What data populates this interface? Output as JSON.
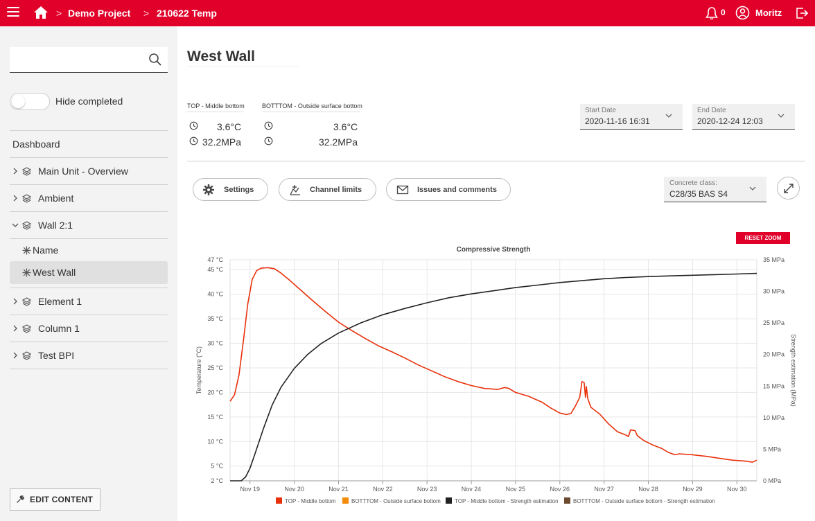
{
  "header": {
    "breadcrumbs": [
      "Demo Project",
      "210622 Temp"
    ],
    "separator": ">",
    "notification_count": "0",
    "user_name": "Moritz",
    "accent": "#e0002a"
  },
  "sidebar": {
    "search_placeholder": "",
    "toggle_label": "Hide completed",
    "items": [
      {
        "label": "Dashboard"
      },
      {
        "label": "Main Unit - Overview"
      },
      {
        "label": "Ambient"
      },
      {
        "label": "Wall 2:1"
      },
      {
        "label": "Name"
      },
      {
        "label": "West Wall"
      },
      {
        "label": "Element 1"
      },
      {
        "label": "Column 1"
      },
      {
        "label": "Test BPI"
      }
    ],
    "edit_button": "EDIT CONTENT"
  },
  "main": {
    "title": "West Wall",
    "sensors": [
      {
        "name": "TOP - Middle bottom",
        "temperature": "3.6°C",
        "strength": "32.2MPa"
      },
      {
        "name": "BOTTTOM - Outside surface bottom",
        "temperature": "3.6°C",
        "strength": "32.2MPa"
      }
    ],
    "start_date": {
      "label": "Start Date",
      "value": "2020-11-16 16:31"
    },
    "end_date": {
      "label": "End Date",
      "value": "2020-12-24 12:03"
    },
    "buttons": {
      "settings": "Settings",
      "channel_limits": "Channel limits",
      "issues": "Issues and comments"
    },
    "concrete_class": {
      "label": "Concrete class:",
      "value": "C28/35 BAS S4"
    },
    "reset_zoom": "RESET ZOOM"
  },
  "chart_data": {
    "type": "line",
    "title": "Compressive Strength",
    "xlabel": "",
    "ylabel_left": "Temperature (°C)",
    "ylabel_right": "Strength estimation (MPa)",
    "x_ticks": [
      "Nov 19",
      "Nov 20",
      "Nov 21",
      "Nov 22",
      "Nov 23",
      "Nov 24",
      "Nov 25",
      "Nov 26",
      "Nov 27",
      "Nov 28",
      "Nov 29",
      "Nov 30"
    ],
    "x_tick_day": [
      19,
      20,
      21,
      22,
      23,
      24,
      25,
      26,
      27,
      28,
      29,
      30
    ],
    "xlim_day": [
      18.55,
      30.45
    ],
    "y_left_ticks": [
      {
        "v": 2,
        "label": "2 °C"
      },
      {
        "v": 5,
        "label": "5 °C"
      },
      {
        "v": 10,
        "label": "10 °C"
      },
      {
        "v": 15,
        "label": "15 °C"
      },
      {
        "v": 20,
        "label": "20 °C"
      },
      {
        "v": 25,
        "label": "25 °C"
      },
      {
        "v": 30,
        "label": "30 °C"
      },
      {
        "v": 35,
        "label": "35 °C"
      },
      {
        "v": 40,
        "label": "40 °C"
      },
      {
        "v": 45,
        "label": "45 °C"
      },
      {
        "v": 47,
        "label": "47 °C"
      }
    ],
    "ylim_left": [
      2,
      47
    ],
    "y_right_ticks": [
      {
        "v": 0,
        "label": "0 MPa"
      },
      {
        "v": 5,
        "label": "5 MPa"
      },
      {
        "v": 10,
        "label": "10 MPa"
      },
      {
        "v": 15,
        "label": "15 MPa"
      },
      {
        "v": 20,
        "label": "20 MPa"
      },
      {
        "v": 25,
        "label": "25 MPa"
      },
      {
        "v": 30,
        "label": "30 MPa"
      },
      {
        "v": 35,
        "label": "35 MPa"
      }
    ],
    "ylim_right": [
      0,
      35
    ],
    "series": [
      {
        "name": "TOP - Middle bottom",
        "axis": "left",
        "color": "#e8300a",
        "points": [
          [
            18.55,
            18.2
          ],
          [
            18.65,
            19.5
          ],
          [
            18.75,
            23.5
          ],
          [
            18.85,
            30.5
          ],
          [
            18.95,
            38.0
          ],
          [
            19.05,
            43.0
          ],
          [
            19.15,
            44.8
          ],
          [
            19.25,
            45.3
          ],
          [
            19.4,
            45.4
          ],
          [
            19.55,
            45.2
          ],
          [
            19.7,
            44.3
          ],
          [
            19.9,
            42.8
          ],
          [
            20.1,
            41.2
          ],
          [
            20.4,
            38.8
          ],
          [
            20.7,
            36.5
          ],
          [
            21.0,
            34.3
          ],
          [
            21.3,
            32.6
          ],
          [
            21.6,
            31.0
          ],
          [
            21.9,
            29.5
          ],
          [
            22.2,
            28.3
          ],
          [
            22.5,
            27.0
          ],
          [
            22.8,
            25.6
          ],
          [
            23.1,
            24.4
          ],
          [
            23.4,
            23.2
          ],
          [
            23.7,
            22.2
          ],
          [
            24.0,
            21.4
          ],
          [
            24.3,
            20.8
          ],
          [
            24.6,
            20.6
          ],
          [
            24.75,
            21.0
          ],
          [
            24.85,
            20.8
          ],
          [
            25.0,
            20.0
          ],
          [
            25.3,
            19.2
          ],
          [
            25.6,
            18.0
          ],
          [
            25.8,
            16.8
          ],
          [
            26.0,
            15.8
          ],
          [
            26.15,
            15.5
          ],
          [
            26.25,
            15.7
          ],
          [
            26.35,
            17.2
          ],
          [
            26.45,
            19.0
          ],
          [
            26.5,
            22.2
          ],
          [
            26.55,
            22.0
          ],
          [
            26.58,
            19.0
          ],
          [
            26.6,
            21.2
          ],
          [
            26.63,
            18.8
          ],
          [
            26.7,
            17.0
          ],
          [
            26.9,
            15.6
          ],
          [
            27.1,
            13.6
          ],
          [
            27.3,
            12.0
          ],
          [
            27.5,
            11.3
          ],
          [
            27.55,
            11.0
          ],
          [
            27.6,
            12.4
          ],
          [
            27.7,
            12.2
          ],
          [
            27.75,
            11.2
          ],
          [
            27.9,
            10.2
          ],
          [
            28.1,
            9.3
          ],
          [
            28.3,
            8.6
          ],
          [
            28.45,
            7.8
          ],
          [
            28.6,
            7.3
          ],
          [
            28.7,
            7.5
          ],
          [
            29.0,
            7.3
          ],
          [
            29.3,
            7.0
          ],
          [
            29.6,
            6.6
          ],
          [
            29.9,
            6.2
          ],
          [
            30.2,
            6.0
          ],
          [
            30.35,
            5.8
          ],
          [
            30.45,
            6.2
          ]
        ]
      },
      {
        "name": "BOTTTOM - Outside surface bottom",
        "axis": "left",
        "color": "#f28a0a",
        "points": []
      },
      {
        "name": "TOP - Middle bottom - Strength estimation",
        "axis": "right",
        "color": "#222222",
        "points": [
          [
            18.55,
            0.0
          ],
          [
            18.8,
            0.0
          ],
          [
            18.9,
            0.6
          ],
          [
            19.0,
            2.0
          ],
          [
            19.1,
            4.0
          ],
          [
            19.3,
            8.2
          ],
          [
            19.5,
            12.0
          ],
          [
            19.7,
            14.8
          ],
          [
            20.0,
            17.8
          ],
          [
            20.3,
            20.0
          ],
          [
            20.6,
            21.7
          ],
          [
            21.0,
            23.4
          ],
          [
            21.5,
            25.0
          ],
          [
            22.0,
            26.3
          ],
          [
            22.5,
            27.3
          ],
          [
            23.0,
            28.2
          ],
          [
            23.5,
            29.0
          ],
          [
            24.0,
            29.6
          ],
          [
            24.5,
            30.1
          ],
          [
            25.0,
            30.6
          ],
          [
            25.5,
            31.0
          ],
          [
            26.0,
            31.4
          ],
          [
            26.5,
            31.7
          ],
          [
            27.0,
            32.0
          ],
          [
            27.5,
            32.2
          ],
          [
            28.0,
            32.35
          ],
          [
            28.5,
            32.45
          ],
          [
            29.0,
            32.55
          ],
          [
            29.5,
            32.65
          ],
          [
            30.0,
            32.75
          ],
          [
            30.45,
            32.85
          ]
        ]
      },
      {
        "name": "BOTTTOM - Outside surface bottom - Strength estimation",
        "axis": "right",
        "color": "#6b4a2f",
        "points": []
      }
    ]
  }
}
